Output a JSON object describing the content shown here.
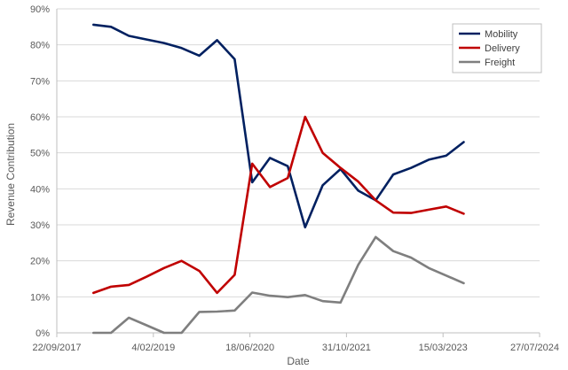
{
  "chart_data": {
    "type": "line",
    "title": "",
    "xlabel": "Date",
    "ylabel": "Revenue Contribution",
    "x_ticks": [
      "22/09/2017",
      "4/02/2019",
      "18/06/2020",
      "31/10/2021",
      "15/03/2023",
      "27/07/2024"
    ],
    "xlim": [
      "2017-09-22",
      "2024-07-27"
    ],
    "y_ticks": [
      "0%",
      "10%",
      "20%",
      "30%",
      "40%",
      "50%",
      "60%",
      "70%",
      "80%",
      "90%"
    ],
    "ylim": [
      0,
      90
    ],
    "grid": "horizontal",
    "legend": "top-right",
    "x": [
      "2018-03-31",
      "2018-06-30",
      "2018-09-30",
      "2018-12-31",
      "2019-03-31",
      "2019-06-30",
      "2019-09-30",
      "2019-12-31",
      "2020-03-31",
      "2020-06-30",
      "2020-09-30",
      "2020-12-31",
      "2021-03-31",
      "2021-06-30",
      "2021-09-30",
      "2021-12-31",
      "2022-03-31",
      "2022-06-30",
      "2022-09-30",
      "2022-12-31",
      "2023-03-31",
      "2023-06-30"
    ],
    "series": [
      {
        "name": "Mobility",
        "color": "#002060",
        "values": [
          85.6,
          85,
          82.5,
          81.5,
          80.5,
          79.1,
          77,
          81.3,
          76,
          41.8,
          48.6,
          46.3,
          29.3,
          41,
          45.5,
          39.5,
          36.8,
          44,
          45.8,
          48.1,
          49.2,
          53
        ]
      },
      {
        "name": "Delivery",
        "color": "#C00000",
        "values": [
          11.1,
          12.8,
          13.3,
          15.6,
          18,
          20,
          17.2,
          11.1,
          16.1,
          47,
          40.5,
          43,
          60,
          50,
          45.8,
          42,
          36.8,
          33.4,
          33.3,
          34.2,
          35.1,
          33.1
        ]
      },
      {
        "name": "Freight",
        "color": "#7F7F7F",
        "values": [
          0,
          0,
          4.2,
          2.1,
          0,
          0,
          5.8,
          5.9,
          6.2,
          11.2,
          10.3,
          9.9,
          10.5,
          8.8,
          8.4,
          18.9,
          26.6,
          22.7,
          20.9,
          18,
          15.9,
          13.8
        ]
      }
    ]
  }
}
